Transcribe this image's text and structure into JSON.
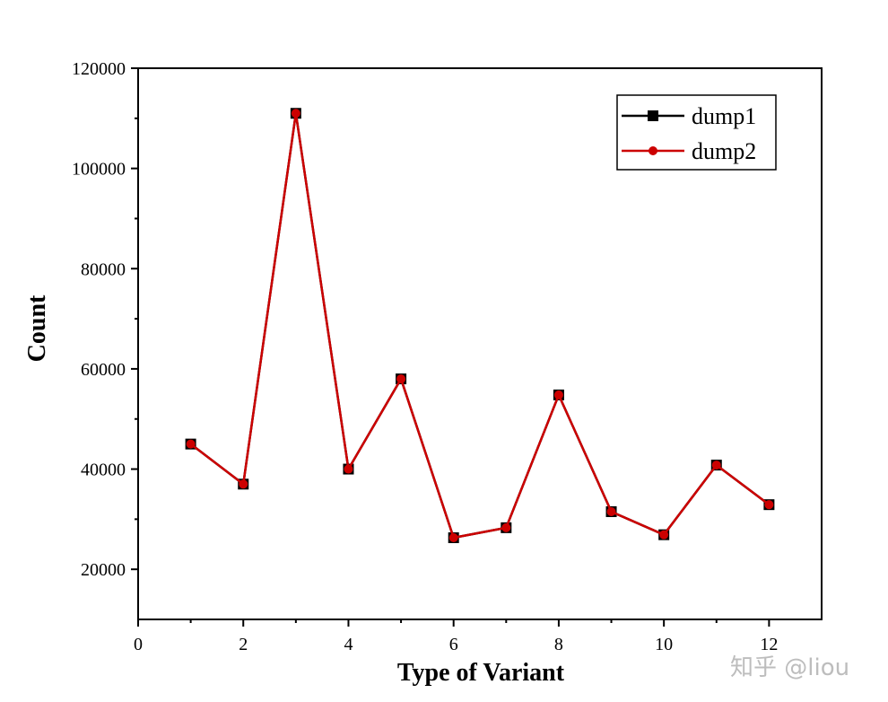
{
  "chart_data": {
    "type": "line",
    "xlabel": "Type of Variant",
    "ylabel": "Count",
    "xlim": [
      0,
      13
    ],
    "ylim": [
      10000,
      120000
    ],
    "x_ticks": [
      "0",
      "2",
      "4",
      "6",
      "8",
      "10",
      "12"
    ],
    "y_ticks": [
      "20000",
      "40000",
      "60000",
      "80000",
      "100000",
      "120000"
    ],
    "x": [
      1,
      2,
      3,
      4,
      5,
      6,
      7,
      8,
      9,
      10,
      11,
      12
    ],
    "series": [
      {
        "name": "dump1",
        "color": "#000000",
        "marker": "square",
        "values": [
          45000,
          37000,
          111000,
          40000,
          58000,
          26300,
          28300,
          54800,
          31500,
          26900,
          40800,
          32900
        ]
      },
      {
        "name": "dump2",
        "color": "#cc0000",
        "marker": "circle",
        "values": [
          45000,
          37000,
          111000,
          40000,
          58000,
          26300,
          28300,
          54800,
          31500,
          26900,
          40800,
          32900
        ]
      }
    ],
    "legend_position": "top-right",
    "grid": false
  },
  "watermark": "知乎 @liou"
}
